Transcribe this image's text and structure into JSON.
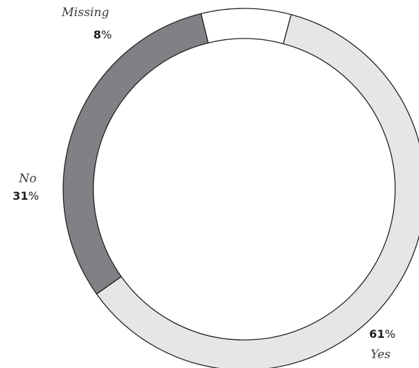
{
  "chart_data": {
    "type": "pie",
    "variant": "donut",
    "slices": [
      {
        "label": "Yes",
        "value": 61,
        "color": "#e6e6e6"
      },
      {
        "label": "No",
        "value": 31,
        "color": "#808184"
      },
      {
        "label": "Missing",
        "value": 8,
        "color": "#ffffff"
      }
    ],
    "value_suffix": "%",
    "start_angle_deg": 15,
    "direction": "clockwise",
    "stroke_color": "#231f20"
  }
}
